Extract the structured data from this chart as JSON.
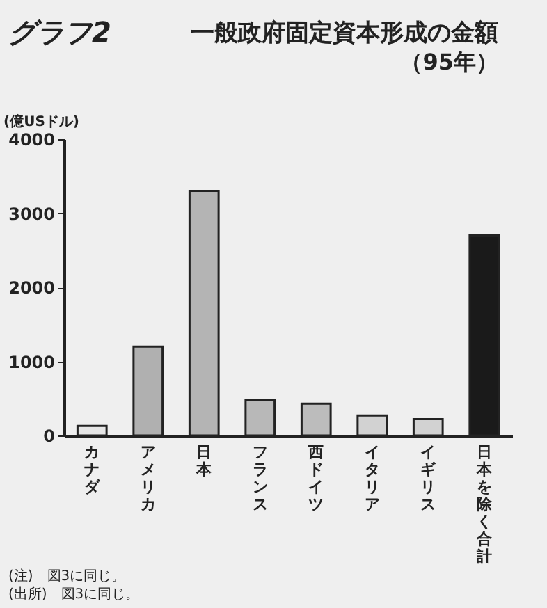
{
  "chart_data": {
    "type": "bar",
    "title": "一般政府固定資本形成の金額",
    "subtitle": "（95年）",
    "ylabel": "(億USドル)",
    "categories": [
      "カナダ",
      "アメリカ",
      "日本",
      "フランス",
      "西ドイツ",
      "イタリア",
      "イギリス",
      "日本を除く合計"
    ],
    "values": [
      130,
      1200,
      3300,
      480,
      430,
      270,
      220,
      2700
    ],
    "colors": [
      "#e6e6e6",
      "#b0b0b0",
      "#b4b4b4",
      "#b8b8b8",
      "#bcbcbc",
      "#d2d2d2",
      "#d2d2d2",
      "#1a1a1a"
    ],
    "ylim": [
      0,
      4000
    ],
    "yticks": [
      0,
      1000,
      2000,
      3000,
      4000
    ],
    "grid": false,
    "legend": false,
    "annotations": [
      "グラフ2",
      "(注)　図3に同じ。",
      "(出所)　図3に同じ。"
    ]
  }
}
